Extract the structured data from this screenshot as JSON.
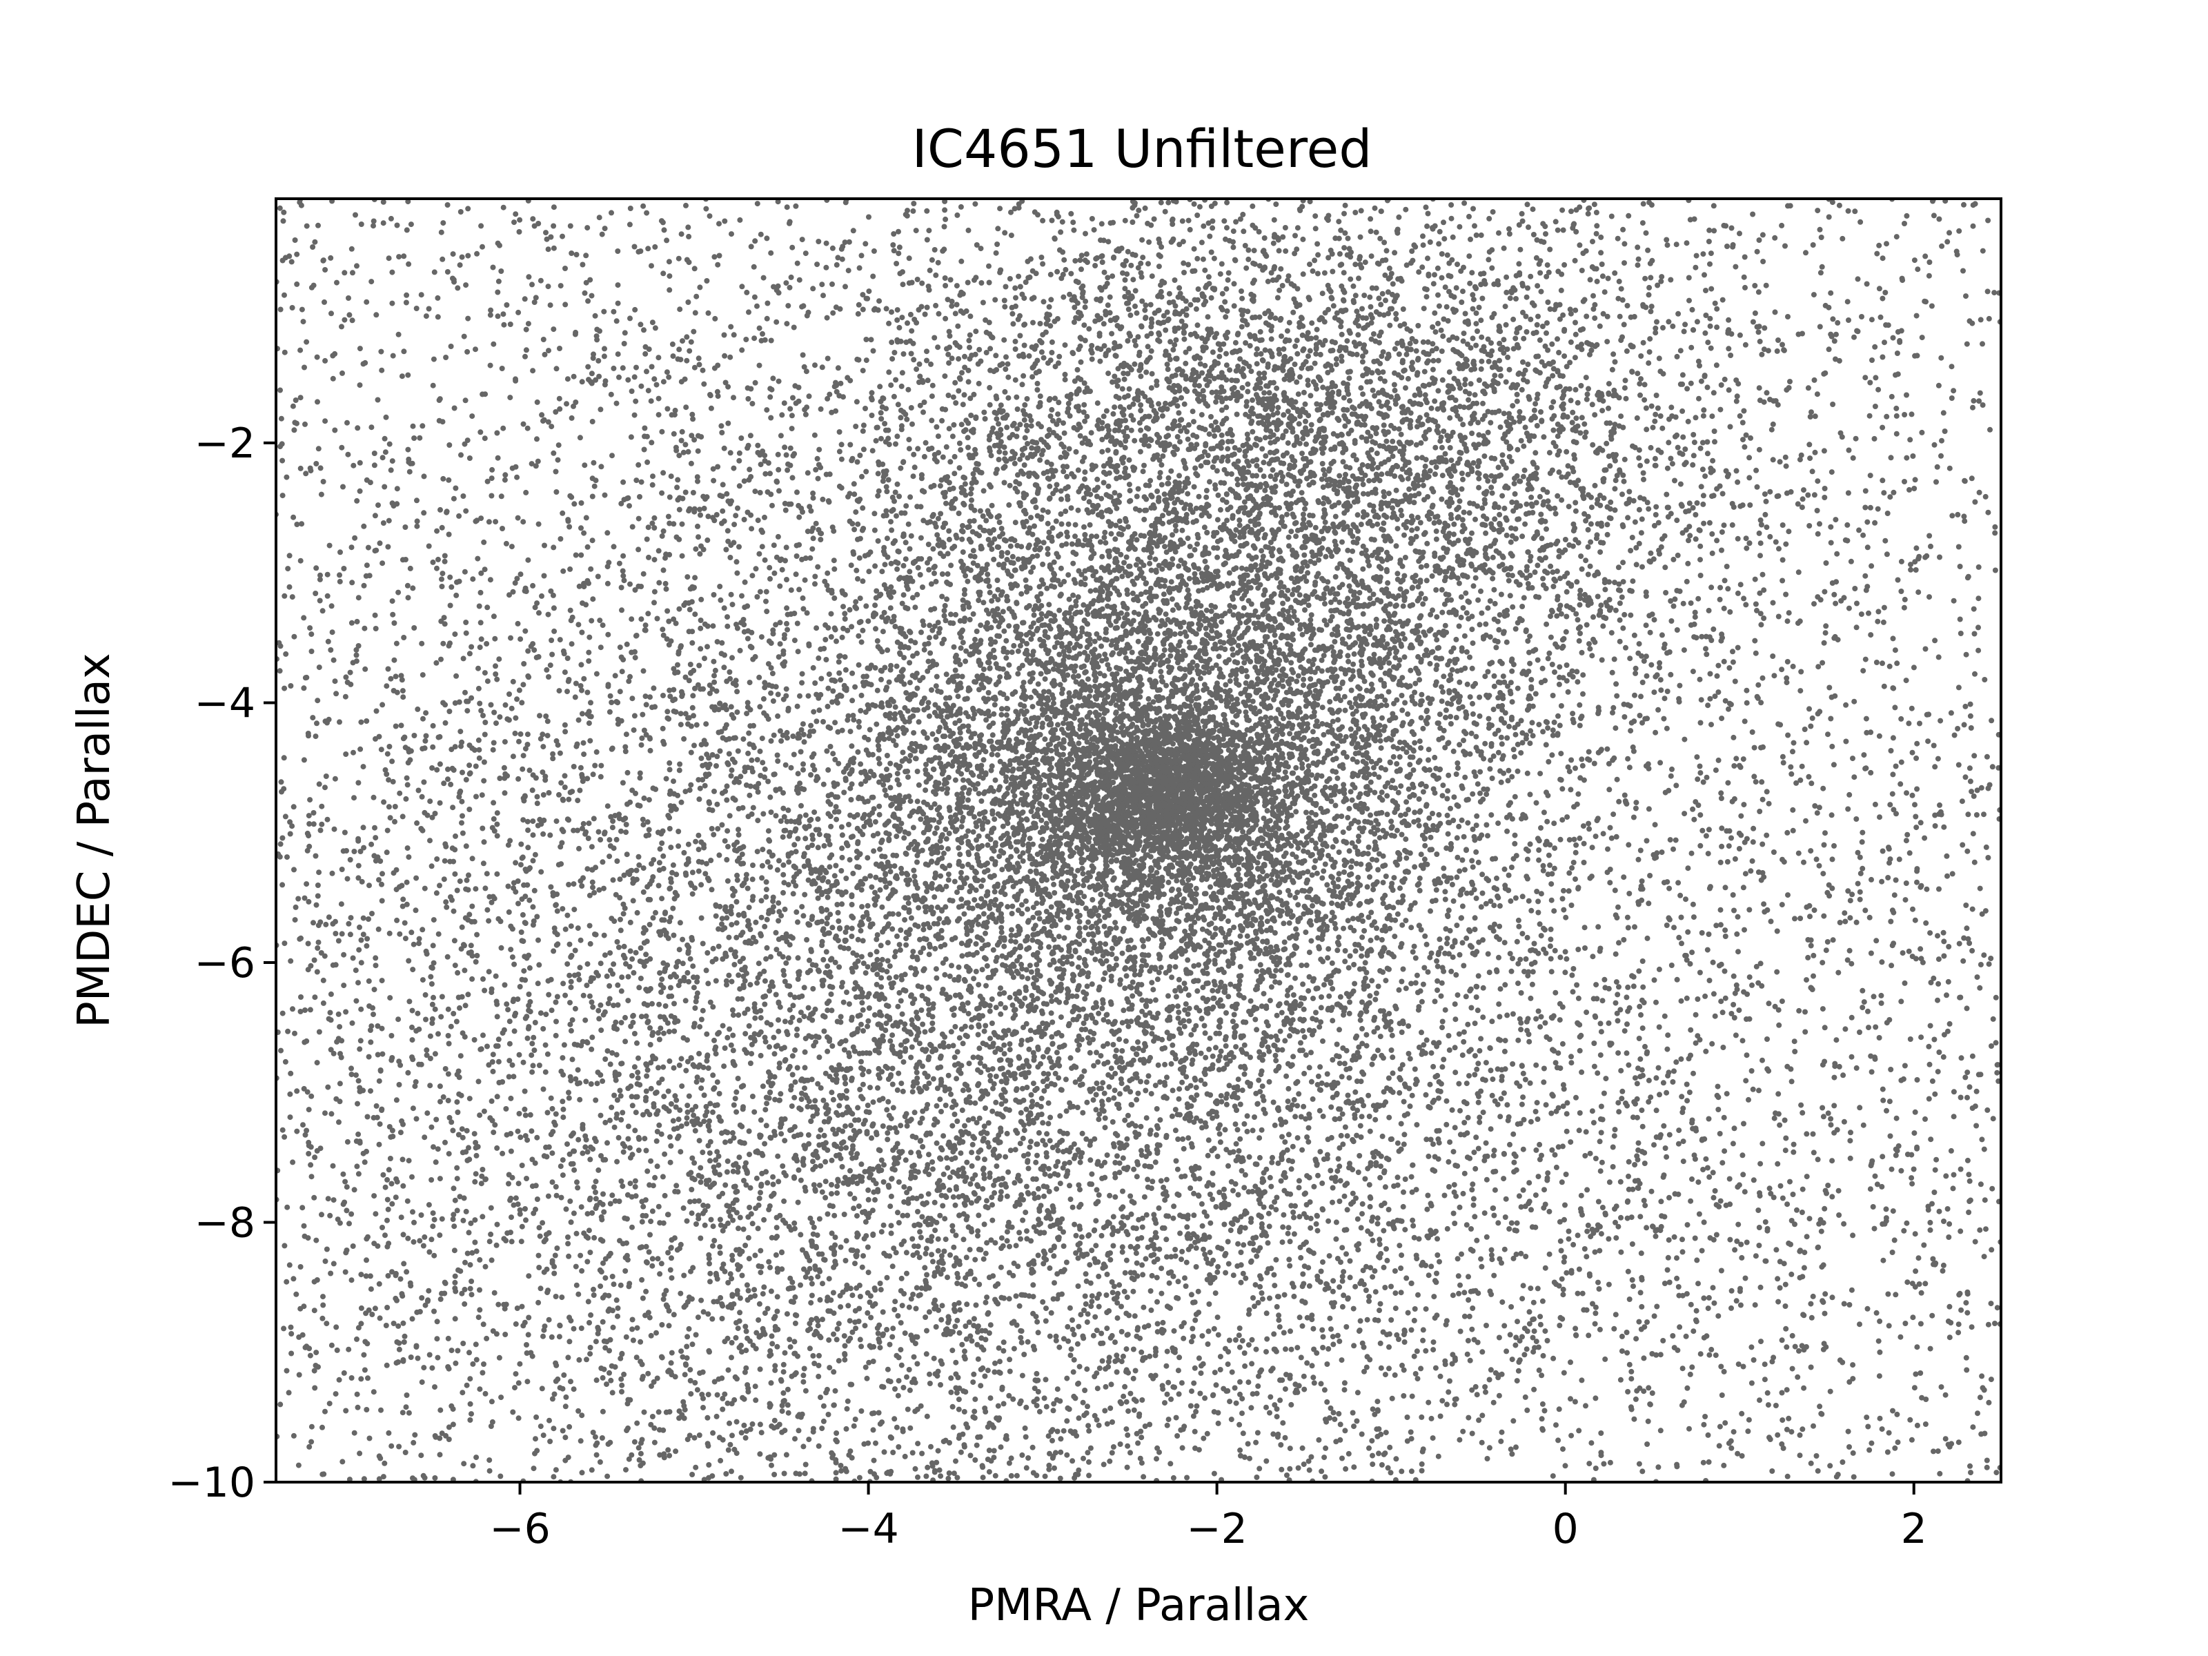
{
  "chart_data": {
    "type": "scatter",
    "title": "IC4651 Unfiltered",
    "xlabel": "PMRA / Parallax",
    "ylabel": "PMDEC / Parallax",
    "xlim": [
      -7.4,
      2.5
    ],
    "ylim": [
      -10,
      -0.12
    ],
    "x_ticks": [
      -6,
      -4,
      -2,
      0,
      2
    ],
    "x_tick_labels": [
      "−6",
      "−4",
      "−2",
      "0",
      "2"
    ],
    "y_ticks": [
      -2,
      -4,
      -6,
      -8,
      -10
    ],
    "y_tick_labels": [
      "−2",
      "−4",
      "−6",
      "−8",
      "−10"
    ],
    "grid": false,
    "legend": "none",
    "marker_color": "#666666",
    "series": [
      {
        "distribution": "dense cluster concentrated near PMRA ≈ −2.3, PMDEC ≈ −4.7 with a broad diffuse halo filling the whole plot; sparser toward the upper-left and right edges",
        "components": [
          {
            "weight": 0.06,
            "center": [
              -2.3,
              -4.7
            ],
            "spread": [
              0.3,
              0.3
            ]
          },
          {
            "weight": 0.14,
            "center": [
              -2.3,
              -4.6
            ],
            "spread": [
              0.8,
              0.8
            ]
          },
          {
            "weight": 0.18,
            "center": [
              -1.6,
              -2.2
            ],
            "spread": [
              1.3,
              1.1
            ]
          },
          {
            "weight": 0.37,
            "center": [
              -3.2,
              -6.4
            ],
            "spread": [
              2.0,
              2.3
            ]
          },
          {
            "weight": 0.25,
            "center": [
              -2.45,
              -5.06
            ],
            "spread": [
              5.0,
              5.0
            ]
          }
        ]
      }
    ]
  }
}
